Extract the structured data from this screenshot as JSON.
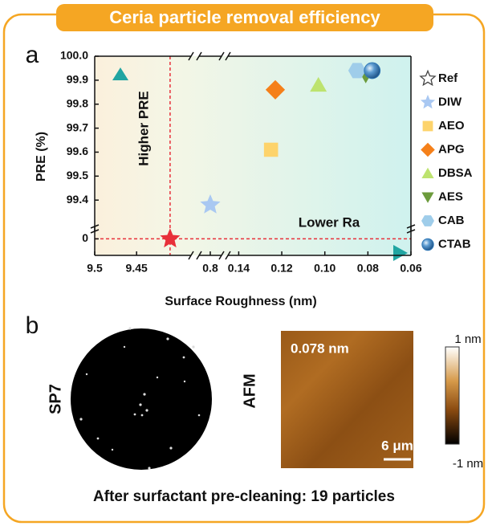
{
  "header": "Ceria particle removal efficiency",
  "chart_data": {
    "type": "scatter",
    "panel": "a",
    "xlabel": "Surface Roughness (nm)",
    "ylabel": "PRE (%)",
    "x_segments": [
      {
        "xlim": [
          9.5,
          9.385
        ],
        "xticks": [
          9.5,
          9.45
        ]
      },
      {
        "xlim": [
          0.82,
          0.78
        ],
        "xticks": [
          0.8
        ]
      },
      {
        "xlim": [
          0.145,
          0.06
        ],
        "xticks": [
          0.14,
          0.12,
          {
            "value": 0.1,
            "label": "0.10"
          },
          0.08,
          0.06
        ]
      }
    ],
    "y_segments": [
      {
        "ylim": [
          -0.2,
          0.15
        ],
        "yticks": [
          0
        ]
      },
      {
        "ylim": [
          99.27,
          100.0
        ],
        "yticks": [
          99.4,
          99.5,
          99.6,
          99.7,
          99.8,
          99.9,
          {
            "value": 100.0,
            "label": "100.0"
          }
        ]
      }
    ],
    "annotations": [
      "Higher PRE",
      "Lower Ra"
    ],
    "series": [
      {
        "name": "Ref",
        "marker": "star",
        "color": "#e8303a",
        "x": [
          9.41
        ],
        "values": [
          0
        ]
      },
      {
        "name": "DIW",
        "marker": "star",
        "color": "#a9c8f2",
        "x": [
          0.8
        ],
        "values": [
          99.38
        ]
      },
      {
        "name": "AEO",
        "marker": "square",
        "color": "#fdd36b",
        "x": [
          0.125
        ],
        "values": [
          99.61
        ]
      },
      {
        "name": "APG",
        "marker": "diamond",
        "color": "#f5801a",
        "x": [
          0.123
        ],
        "values": [
          99.86
        ]
      },
      {
        "name": "DBSA",
        "marker": "triangle-up",
        "color": "#bde36f",
        "x": [
          0.103
        ],
        "values": [
          99.88
        ]
      },
      {
        "name": "AES",
        "marker": "triangle-down",
        "color": "#6c9b3c",
        "x": [
          0.081
        ],
        "values": [
          99.92
        ]
      },
      {
        "name": "CAB",
        "marker": "hexagon",
        "color": "#9fcdea",
        "x": [
          0.085
        ],
        "values": [
          99.94
        ]
      },
      {
        "name": "CTAB",
        "marker": "sphere",
        "color": "#2f78b7",
        "x": [
          0.078
        ],
        "values": [
          99.94
        ]
      }
    ]
  },
  "panel_b": {
    "label": "b",
    "wafer_label": "SP7",
    "afm_label": "AFM",
    "roughness": "0.078 nm",
    "scale_bar": "6 μm",
    "colorbar_max": "1 nm",
    "colorbar_min": "-1 nm",
    "caption": "After surfactant pre-cleaning: 19 particles"
  }
}
